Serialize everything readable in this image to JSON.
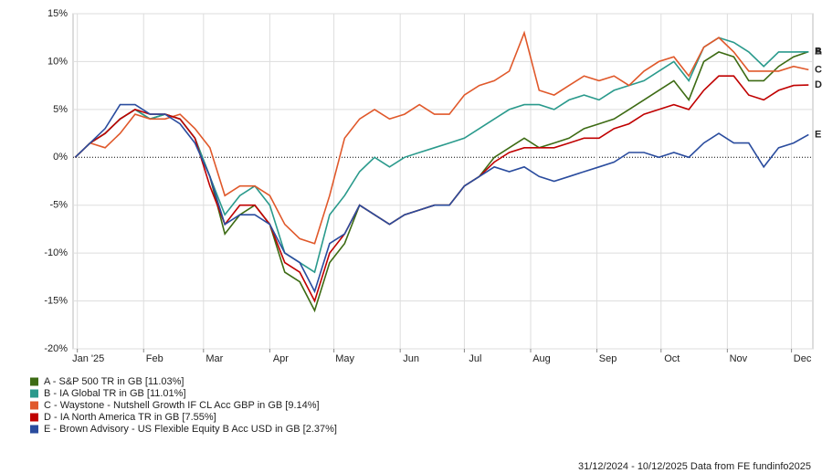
{
  "chart_data": {
    "type": "line",
    "x": [
      0,
      7,
      14,
      21,
      28,
      35,
      42,
      49,
      56,
      63,
      70,
      77,
      84,
      91,
      98,
      105,
      112,
      119,
      126,
      133,
      140,
      147,
      154,
      161,
      168,
      175,
      182,
      189,
      196,
      203,
      210,
      217,
      224,
      231,
      238,
      245,
      252,
      259,
      266,
      273,
      280,
      287,
      294,
      301,
      308,
      315,
      322,
      329,
      336,
      343
    ],
    "xlim": [
      -1,
      345
    ],
    "xticks": [
      {
        "value": 1,
        "label": "Jan '25"
      },
      {
        "value": 32,
        "label": "Feb"
      },
      {
        "value": 60,
        "label": "Mar"
      },
      {
        "value": 91,
        "label": "Apr"
      },
      {
        "value": 121,
        "label": "May"
      },
      {
        "value": 152,
        "label": "Jun"
      },
      {
        "value": 182,
        "label": "Jul"
      },
      {
        "value": 213,
        "label": "Aug"
      },
      {
        "value": 244,
        "label": "Sep"
      },
      {
        "value": 274,
        "label": "Oct"
      },
      {
        "value": 305,
        "label": "Nov"
      },
      {
        "value": 335,
        "label": "Dec"
      }
    ],
    "ylim": [
      -20,
      15
    ],
    "yticks": [
      {
        "value": -20,
        "label": "-20%"
      },
      {
        "value": -15,
        "label": "-15%"
      },
      {
        "value": -10,
        "label": "-10%"
      },
      {
        "value": -5,
        "label": "-5%"
      },
      {
        "value": 0,
        "label": "0%"
      },
      {
        "value": 5,
        "label": "5%"
      },
      {
        "value": 10,
        "label": "10%"
      },
      {
        "value": 15,
        "label": "15%"
      }
    ],
    "grid": true,
    "series": [
      {
        "name": "A - S&P 500 TR in GB [11.03%]",
        "end_label": "A",
        "color": "#3d6b14",
        "values": [
          0,
          1.5,
          2.5,
          4,
          5,
          4,
          4.5,
          4,
          2,
          -2,
          -8,
          -6,
          -5,
          -7,
          -12,
          -13,
          -16,
          -11,
          -9,
          -5,
          -6,
          -7,
          -6,
          -5.5,
          -5,
          -5,
          -3,
          -2,
          0,
          1,
          2,
          1,
          1.5,
          2,
          3,
          3.5,
          4,
          5,
          6,
          7,
          8,
          6,
          10,
          11,
          10.5,
          8,
          8,
          9.5,
          10.5,
          11.03
        ]
      },
      {
        "name": "B - IA Global TR in GB [11.01%]",
        "end_label": "B",
        "color": "#2a9a8c",
        "values": [
          0,
          1.5,
          2.5,
          4,
          5,
          4,
          4.5,
          4,
          2,
          -2,
          -6,
          -4,
          -3,
          -5,
          -10,
          -11,
          -12,
          -6,
          -4,
          -1.5,
          0,
          -1,
          0,
          0.5,
          1,
          1.5,
          2,
          3,
          4,
          5,
          5.5,
          5.5,
          5,
          6,
          6.5,
          6,
          7,
          7.5,
          8,
          9,
          10,
          8,
          11.5,
          12.5,
          12,
          11,
          9.5,
          11,
          11,
          11.01
        ]
      },
      {
        "name": "C - Waystone - Nutshell Growth IF CL Acc GBP in GB [9.14%]",
        "end_label": "C",
        "color": "#e0582a",
        "values": [
          0,
          1.5,
          1,
          2.5,
          4.5,
          4,
          4,
          4.5,
          3,
          1,
          -4,
          -3,
          -3,
          -4,
          -7,
          -8.5,
          -9,
          -4,
          2,
          4,
          5,
          4,
          4.5,
          5.5,
          4.5,
          4.5,
          6.5,
          7.5,
          8,
          9,
          13,
          7,
          6.5,
          7.5,
          8.5,
          8,
          8.5,
          7.5,
          9,
          10,
          10.5,
          8.5,
          11.5,
          12.5,
          11,
          9,
          9,
          9,
          9.5,
          9.14
        ]
      },
      {
        "name": "D - IA North America TR in GB [7.55%]",
        "end_label": "D",
        "color": "#c00000",
        "values": [
          0,
          1.5,
          2.5,
          4,
          5,
          4.5,
          4.5,
          4,
          2,
          -3,
          -7,
          -5,
          -5,
          -7,
          -11,
          -12,
          -15,
          -10,
          -8,
          -5,
          -6,
          -7,
          -6,
          -5.5,
          -5,
          -5,
          -3,
          -2,
          -0.5,
          0.5,
          1,
          1,
          1,
          1.5,
          2,
          2,
          3,
          3.5,
          4.5,
          5,
          5.5,
          5,
          7,
          8.5,
          8.5,
          6.5,
          6,
          7,
          7.5,
          7.55
        ]
      },
      {
        "name": "E - Brown Advisory - US Flexible Equity B Acc USD in GB [2.37%]",
        "end_label": "E",
        "color": "#2a4c9e",
        "values": [
          0,
          1.5,
          3,
          5.5,
          5.5,
          4.5,
          4.5,
          3.5,
          1.5,
          -2,
          -7,
          -6,
          -6,
          -7,
          -10,
          -11,
          -14,
          -9,
          -8,
          -5,
          -6,
          -7,
          -6,
          -5.5,
          -5,
          -5,
          -3,
          -2,
          -1,
          -1.5,
          -1,
          -2,
          -2.5,
          -2,
          -1.5,
          -1,
          -0.5,
          0.5,
          0.5,
          0,
          0.5,
          0,
          1.5,
          2.5,
          1.5,
          1.5,
          -1,
          1,
          1.5,
          2.37
        ]
      }
    ],
    "footer": "31/12/2024 - 10/12/2025 Data from FE fundinfo2025"
  }
}
